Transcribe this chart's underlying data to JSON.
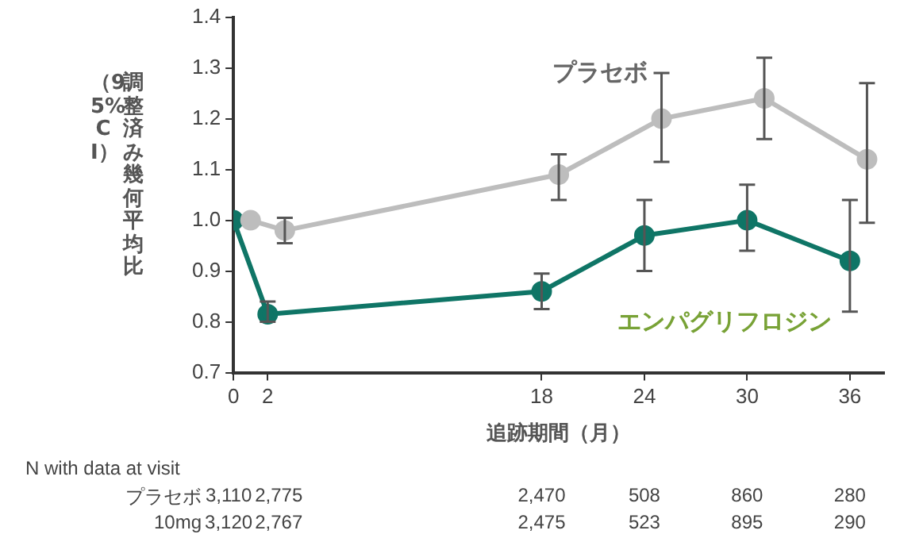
{
  "chart_data": {
    "type": "line",
    "ylabel": "調整済み幾何平均比（95%CI）",
    "xlabel": "追跡期間（月）",
    "xlim": [
      0,
      38
    ],
    "xticks": [
      0,
      2,
      18,
      24,
      30,
      36
    ],
    "ylim": [
      0.7,
      1.4
    ],
    "yticks": [
      0.7,
      0.8,
      0.9,
      {
        "value": 1,
        "label": "1.0"
      },
      1.1,
      1.2,
      1.3,
      1.4
    ],
    "grid": false,
    "legend": false,
    "marker": "circle",
    "line_style": "solid",
    "series": [
      {
        "name": "プラセボ",
        "color": "#bdbdbd",
        "x": [
          1,
          3,
          19,
          25,
          31,
          37
        ],
        "values": [
          1.0,
          0.98,
          1.09,
          1.2,
          1.24,
          1.12
        ],
        "errors": [
          null,
          [
            0.955,
            1.005
          ],
          [
            1.04,
            1.13
          ],
          [
            1.115,
            1.29
          ],
          [
            1.16,
            1.32
          ],
          [
            0.995,
            1.27
          ]
        ]
      },
      {
        "name": "エンパグリフロジン",
        "color": "#0f7566",
        "x": [
          0,
          2,
          18,
          24,
          30,
          36
        ],
        "values": [
          1.0,
          0.815,
          0.86,
          0.97,
          1.0,
          0.92
        ],
        "errors": [
          null,
          [
            0.8,
            0.84
          ],
          [
            0.825,
            0.895
          ],
          [
            0.9,
            1.04
          ],
          [
            0.94,
            1.07
          ],
          [
            0.82,
            1.04
          ]
        ]
      }
    ],
    "annotations": [
      "N with data at visit",
      "プラセボ",
      "3,110",
      "2,775",
      "2,470",
      "508",
      "860",
      "280",
      "10mg",
      "3,120",
      "2,767",
      "2,475",
      "523",
      "895",
      "290"
    ]
  }
}
